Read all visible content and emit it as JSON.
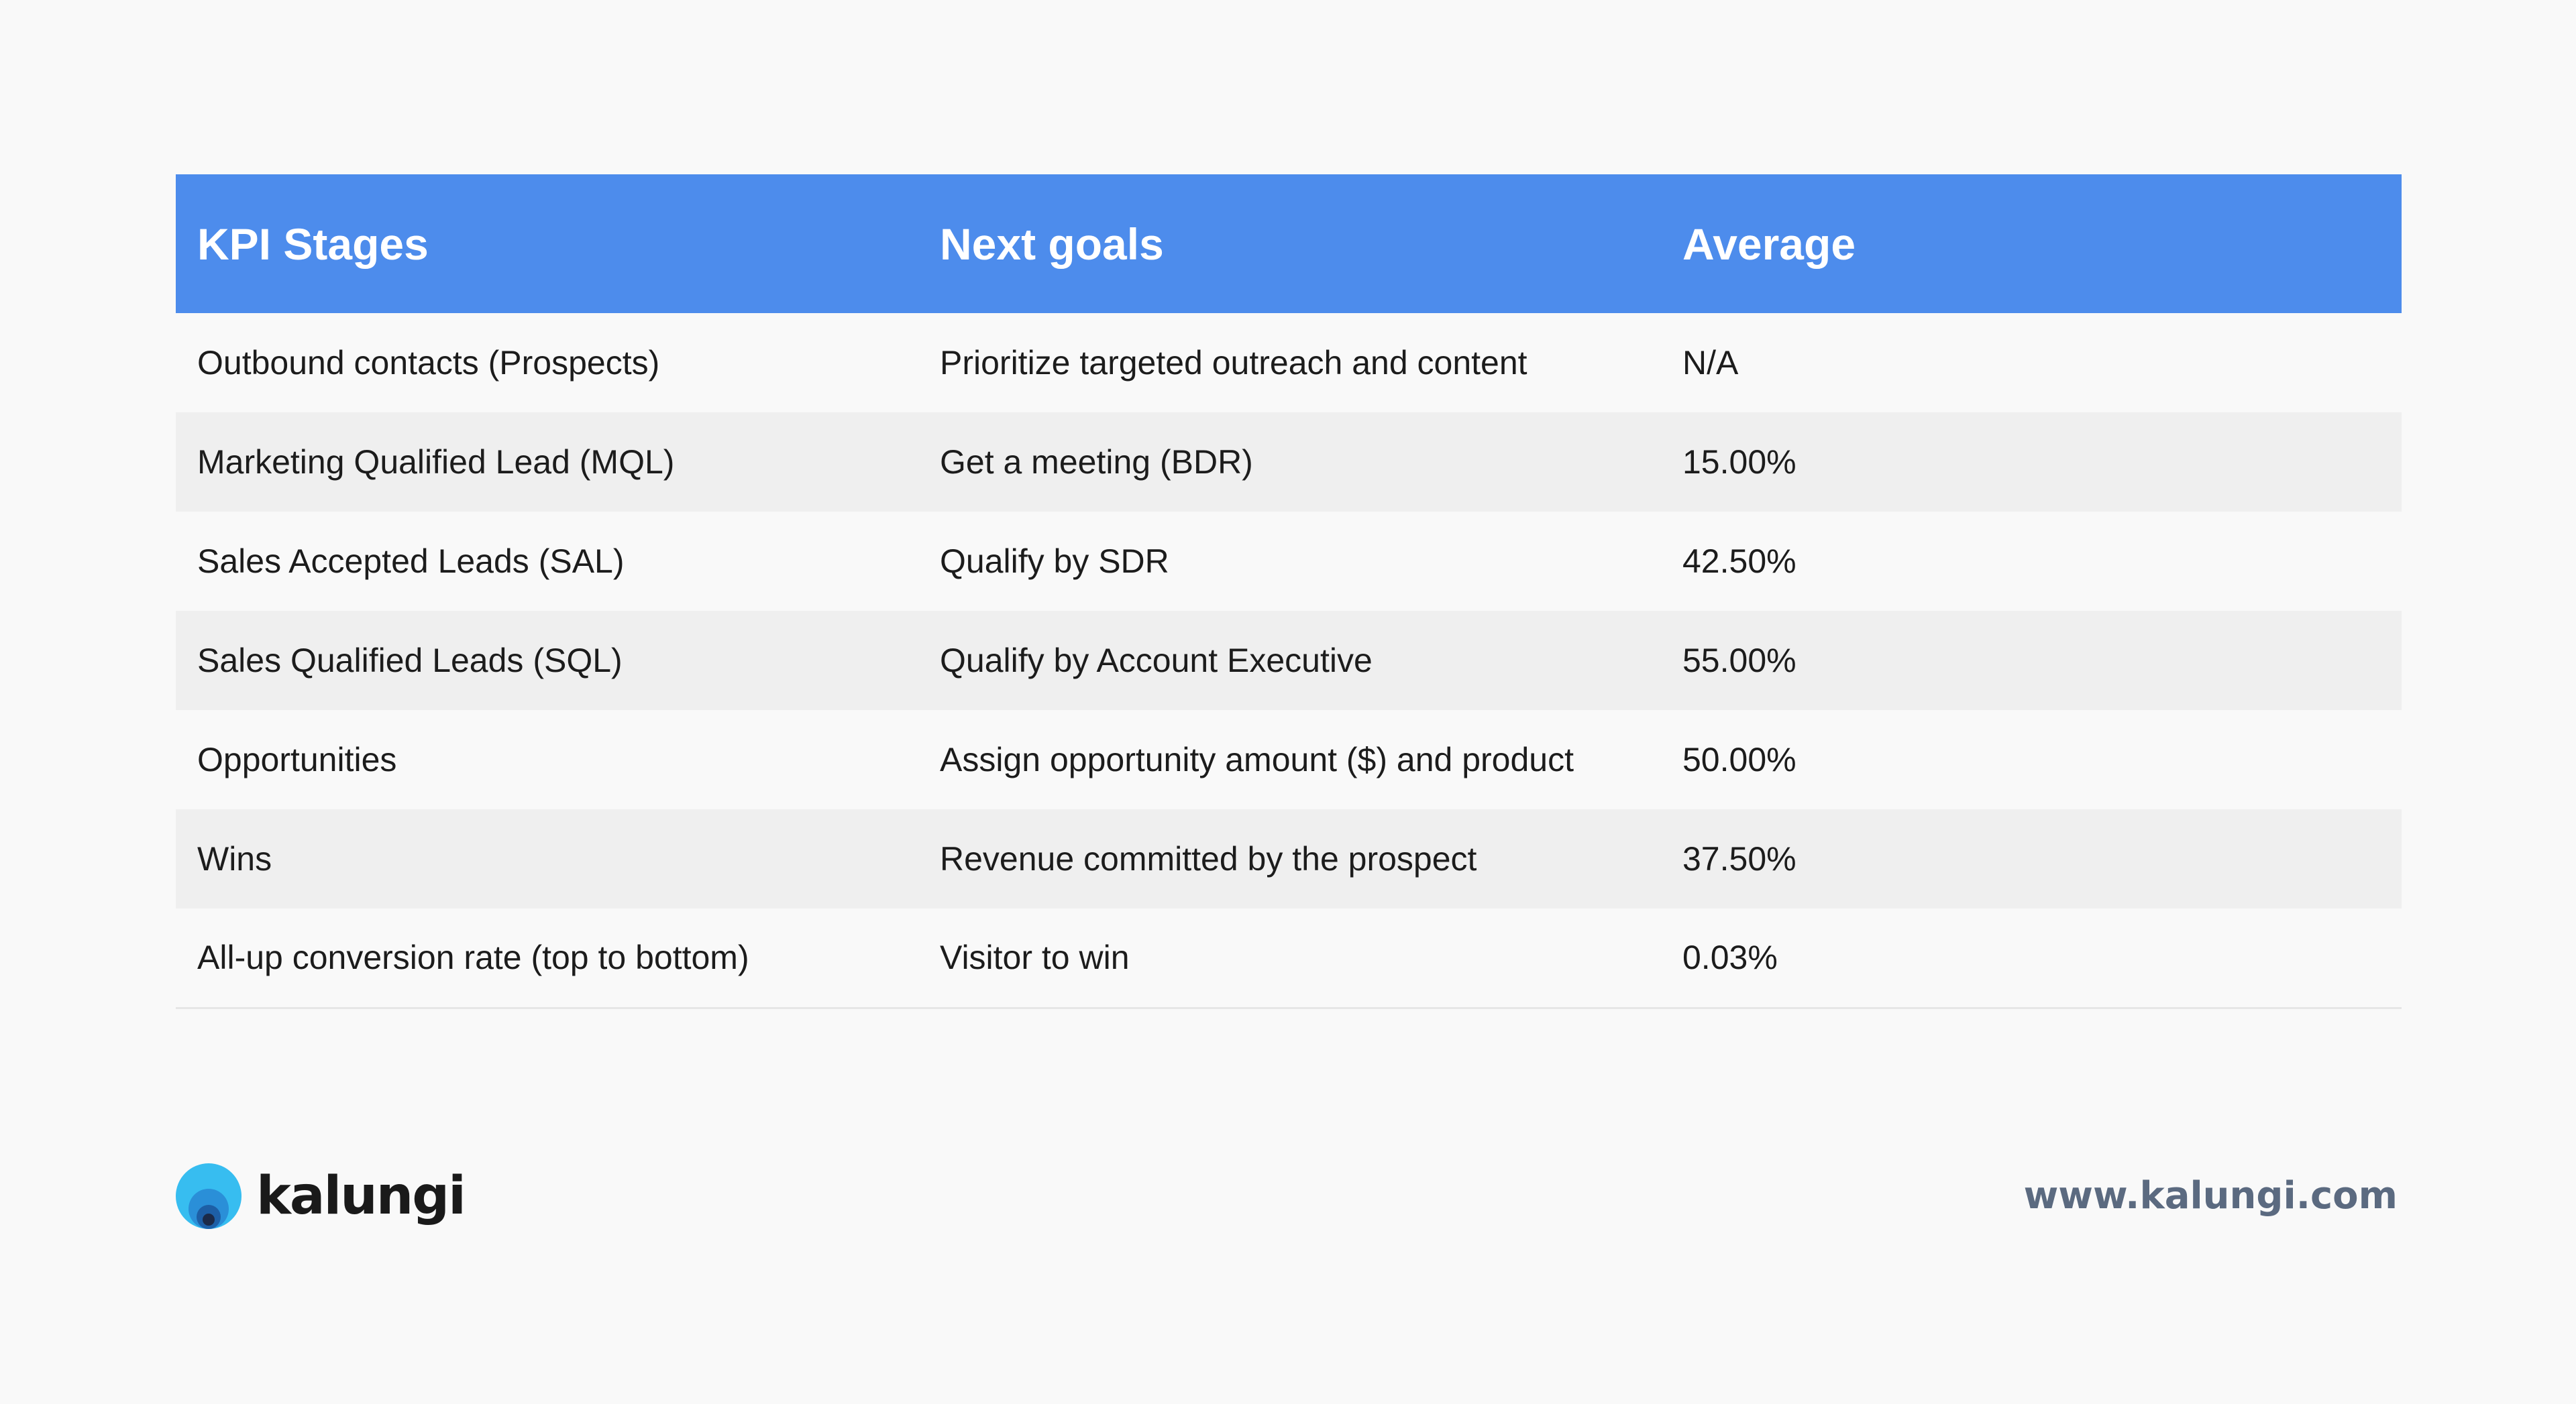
{
  "table": {
    "headers": [
      "KPI Stages",
      "Next goals",
      "Average"
    ],
    "rows": [
      [
        "Outbound contacts (Prospects)",
        "Prioritize targeted outreach and content",
        "N/A"
      ],
      [
        "Marketing Qualified Lead (MQL)",
        "Get a meeting (BDR)",
        "15.00%"
      ],
      [
        "Sales Accepted Leads (SAL)",
        "Qualify by SDR",
        "42.50%"
      ],
      [
        "Sales Qualified Leads (SQL)",
        "Qualify by Account Executive",
        "55.00%"
      ],
      [
        "Opportunities",
        "Assign opportunity amount ($) and product",
        "50.00%"
      ],
      [
        "Wins",
        "Revenue committed by the prospect",
        "37.50%"
      ],
      [
        "All-up conversion rate (top to bottom)",
        "Visitor to win",
        "0.03%"
      ]
    ]
  },
  "footer": {
    "brand_name": "kalungi",
    "website": "www.kalungi.com",
    "logo_icon": "kalungi-logo-icon"
  },
  "colors": {
    "header_background": "#4d8cec",
    "header_text": "#ffffff",
    "stripe": "#efefef",
    "page_background": "#f9f9f9",
    "website_text": "#5b6a80"
  }
}
